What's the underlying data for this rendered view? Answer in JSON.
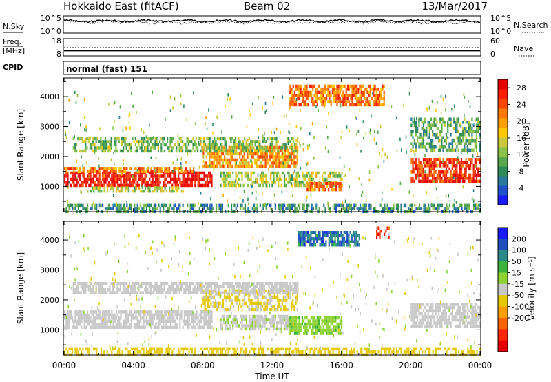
{
  "header": {
    "station": "Hokkaido East (fitACF)",
    "beam": "Beam 02",
    "date": "13/Mar/2017"
  },
  "panel_labels": {
    "nsky": "N.Sky",
    "nsky_top": "10^5",
    "nsky_bottom": "10^0",
    "nsearch": "N.Search",
    "nsearch_top": "10^5",
    "nsearch_bottom": "10^0",
    "freq": "Freq.",
    "freq_unit": "[MHz]",
    "freq_top": "18",
    "freq_bottom": "8",
    "nave": "Nave",
    "nave_top": "60",
    "nave_bottom": "0",
    "cpid": "CPID",
    "cpid_text": "normal (fast) 151"
  },
  "chart_data": [
    {
      "type": "heatmap",
      "parameter": "power",
      "xlabel": "",
      "ylabel": "Slant Range [km]",
      "y_ticks": [
        "1000",
        "2000",
        "3000",
        "4000"
      ],
      "xlim_hours": [
        0,
        24
      ],
      "ylim_km": [
        180,
        4600
      ],
      "colorbar": {
        "label": "Power [dB]",
        "ticks": [
          "4",
          "8",
          "12",
          "16",
          "20",
          "24",
          "28"
        ],
        "range": [
          0,
          30
        ],
        "colors": [
          "#1a1aff",
          "#1f50c8",
          "#2a7a9c",
          "#2e8b57",
          "#58a84c",
          "#8bc34a",
          "#c8c83c",
          "#ffc800",
          "#ffa000",
          "#ff7800",
          "#ff4600",
          "#ff1e00",
          "#e60000"
        ]
      },
      "echo_regions": [
        {
          "t0": 0.0,
          "t1": 8.5,
          "r0": 1080,
          "r1": 1500,
          "value": 28
        },
        {
          "t0": 0.0,
          "t1": 7.5,
          "r0": 1500,
          "r1": 1650,
          "value": 22
        },
        {
          "t0": 1.5,
          "t1": 7.0,
          "r0": 800,
          "r1": 1000,
          "value": 14
        },
        {
          "t0": 8.0,
          "t1": 13.5,
          "r0": 1700,
          "r1": 2350,
          "value": 20
        },
        {
          "t0": 9.0,
          "t1": 16.0,
          "r0": 1000,
          "r1": 1500,
          "value": 14
        },
        {
          "t0": 14.0,
          "t1": 16.0,
          "r0": 850,
          "r1": 1150,
          "value": 22
        },
        {
          "t0": 0.5,
          "t1": 13.5,
          "r0": 2200,
          "r1": 2650,
          "value": 12
        },
        {
          "t0": 13.0,
          "t1": 18.5,
          "r0": 3700,
          "r1": 4400,
          "value": 22
        },
        {
          "t0": 20.0,
          "t1": 24.0,
          "r0": 1150,
          "r1": 1950,
          "value": 26
        },
        {
          "t0": 20.0,
          "t1": 24.0,
          "r0": 2200,
          "r1": 3300,
          "value": 10
        },
        {
          "t0": 0.0,
          "t1": 24.0,
          "r0": 200,
          "r1": 420,
          "value": 8
        }
      ]
    },
    {
      "type": "heatmap",
      "parameter": "velocity",
      "xlabel": "Time UT",
      "ylabel": "Slant Range [km]",
      "x_ticks": [
        "00:00",
        "04:00",
        "08:00",
        "12:00",
        "16:00",
        "20:00",
        "00:00"
      ],
      "y_ticks": [
        "1000",
        "2000",
        "3000",
        "4000"
      ],
      "xlim_hours": [
        0,
        24
      ],
      "ylim_km": [
        180,
        4600
      ],
      "colorbar": {
        "label": "Velocity [m s⁻¹]",
        "ticks": [
          "200",
          "100",
          "50",
          "15",
          "-15",
          "-50",
          "-100",
          "-200"
        ],
        "colors": [
          "#1a1aff",
          "#2050c0",
          "#2a8a8a",
          "#3cb43c",
          "#8cd232",
          "#c8c8c8",
          "#e6c800",
          "#ffa000",
          "#ff6400",
          "#ff2800",
          "#e60000"
        ]
      },
      "echo_regions": [
        {
          "t0": 0.0,
          "t1": 8.5,
          "r0": 1080,
          "r1": 1650,
          "value": 0
        },
        {
          "t0": 8.0,
          "t1": 13.5,
          "r0": 1700,
          "r1": 2350,
          "value": -20
        },
        {
          "t0": 9.0,
          "t1": 13.0,
          "r0": 1000,
          "r1": 1500,
          "value": 5
        },
        {
          "t0": 13.0,
          "t1": 16.0,
          "r0": 900,
          "r1": 1450,
          "value": 40
        },
        {
          "t0": 13.5,
          "t1": 17.0,
          "r0": 3800,
          "r1": 4300,
          "value": 150
        },
        {
          "t0": 18.0,
          "t1": 18.7,
          "r0": 4100,
          "r1": 4450,
          "value": -200
        },
        {
          "t0": 20.0,
          "t1": 24.0,
          "r0": 1100,
          "r1": 1900,
          "value": 0
        },
        {
          "t0": 0.5,
          "t1": 13.5,
          "r0": 2200,
          "r1": 2600,
          "value": 0
        },
        {
          "t0": 0.0,
          "t1": 24.0,
          "r0": 200,
          "r1": 420,
          "value": -30
        }
      ]
    }
  ]
}
